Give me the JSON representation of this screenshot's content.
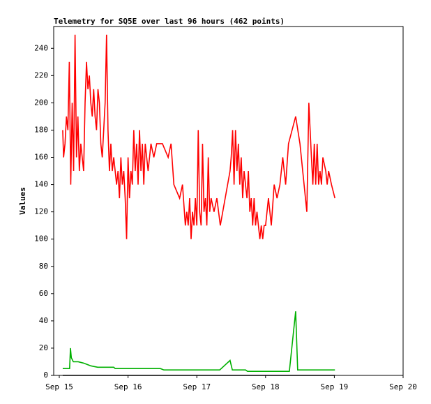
{
  "chart_data": {
    "type": "line",
    "title": "Telemetry for SQ5E over last 96 hours (462 points)",
    "ylabel": "Values",
    "xlim": [
      -1.95,
      120
    ],
    "xticks": [
      {
        "value": 0,
        "label": "Sep 15"
      },
      {
        "value": 24,
        "label": "Sep 16"
      },
      {
        "value": 48,
        "label": "Sep 17"
      },
      {
        "value": 72,
        "label": "Sep 18"
      },
      {
        "value": 96,
        "label": "Sep 19"
      },
      {
        "value": 120,
        "label": "Sep 20"
      }
    ],
    "ylim": [
      0,
      256
    ],
    "yticks": [
      0,
      20,
      40,
      60,
      80,
      100,
      120,
      140,
      160,
      180,
      200,
      220,
      240
    ],
    "series": [
      {
        "color": "#ff0000",
        "x": [
          1.2,
          1.5,
          2,
          2.5,
          3,
          3.5,
          4,
          4.5,
          5,
          5.5,
          6,
          6.5,
          7,
          7.5,
          8,
          8.5,
          9,
          9.5,
          10,
          10.5,
          11,
          11.5,
          12,
          12.5,
          13,
          13.5,
          14,
          14.5,
          15,
          15.5,
          16,
          16.5,
          17,
          17.5,
          18,
          18.5,
          19,
          19.5,
          20,
          20.5,
          21,
          21.5,
          22,
          22.5,
          23,
          23.5,
          24,
          24.5,
          25,
          25.5,
          26,
          26.5,
          27,
          27.5,
          28,
          28.5,
          29,
          29.5,
          30,
          31,
          32,
          33,
          34,
          36,
          38,
          39,
          40,
          41,
          42,
          43,
          44,
          44.5,
          45,
          45.5,
          46,
          46.5,
          47,
          47.5,
          48,
          48.5,
          49,
          49.5,
          50,
          50.5,
          51,
          51.5,
          52,
          52.5,
          53,
          54,
          55,
          56.2,
          59.6,
          60,
          60.5,
          61,
          61.5,
          62,
          62.5,
          63,
          63.5,
          64,
          64.5,
          65,
          65.5,
          66,
          66.5,
          67,
          67.5,
          68,
          68.5,
          69,
          69.5,
          70,
          70.5,
          71,
          71.5,
          72,
          73,
          74,
          75,
          76,
          77,
          78,
          79,
          80,
          82.5,
          84,
          86.4,
          87.1,
          88,
          88.5,
          89,
          89.5,
          90,
          90.5,
          91,
          91.5,
          92,
          93,
          93.5,
          94,
          95,
          96.2
        ],
        "values": [
          180,
          160,
          170,
          190,
          180,
          230,
          140,
          200,
          150,
          250,
          160,
          190,
          150,
          170,
          160,
          150,
          200,
          230,
          210,
          220,
          200,
          190,
          210,
          190,
          180,
          210,
          200,
          170,
          160,
          180,
          200,
          250,
          180,
          150,
          170,
          150,
          160,
          150,
          140,
          150,
          130,
          160,
          140,
          150,
          130,
          100,
          160,
          130,
          150,
          140,
          180,
          150,
          170,
          140,
          180,
          150,
          170,
          140,
          170,
          150,
          170,
          160,
          170,
          170,
          160,
          170,
          140,
          135,
          130,
          140,
          110,
          120,
          110,
          130,
          100,
          120,
          110,
          130,
          110,
          180,
          120,
          110,
          170,
          120,
          130,
          110,
          160,
          120,
          130,
          120,
          130,
          110,
          150,
          160,
          180,
          140,
          180,
          150,
          170,
          140,
          160,
          130,
          150,
          140,
          130,
          150,
          120,
          130,
          110,
          130,
          110,
          120,
          110,
          100,
          110,
          100,
          110,
          110,
          130,
          110,
          140,
          130,
          140,
          160,
          140,
          170,
          190,
          170,
          120,
          200,
          160,
          140,
          170,
          140,
          170,
          140,
          150,
          140,
          160,
          150,
          140,
          150,
          140,
          130
        ]
      },
      {
        "color": "#00b000",
        "x": [
          1.2,
          3.6,
          3.9,
          4.2,
          4.9,
          6.6,
          8.5,
          11,
          13.4,
          19,
          19.5,
          35.3,
          36.5,
          56,
          59.6,
          60.4,
          65,
          65.7,
          80.3,
          82.5,
          83.2,
          96.2
        ],
        "values": [
          5,
          5,
          20,
          13,
          10,
          10,
          9,
          7,
          6,
          6,
          5,
          5,
          4,
          4,
          11,
          4,
          4,
          3,
          3,
          47,
          4,
          4
        ]
      },
      {
        "color": "#000000",
        "x": [
          1.2,
          96.2
        ],
        "values": [
          0,
          0
        ]
      }
    ]
  }
}
